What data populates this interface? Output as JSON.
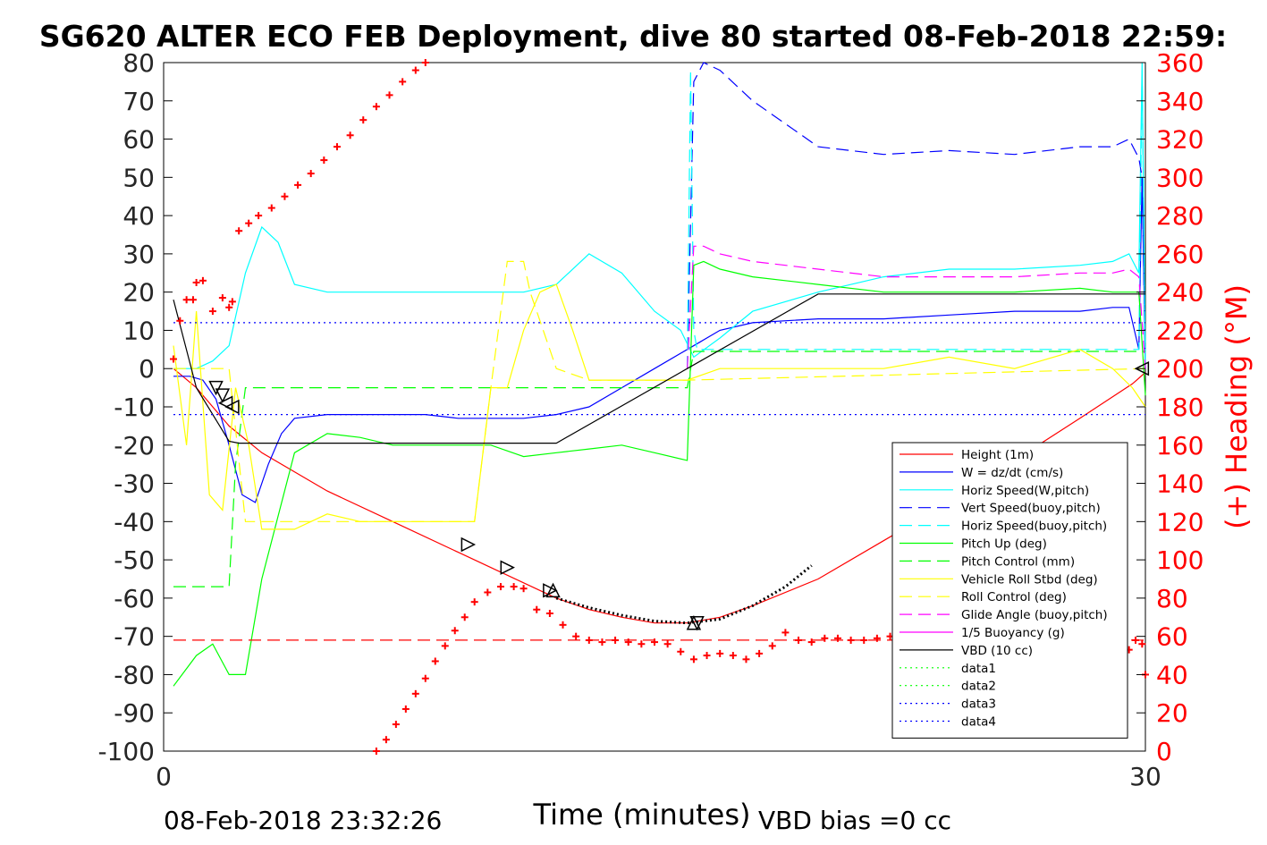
{
  "title": "SG620 ALTER ECO FEB Deployment, dive 80 started 08-Feb-2018 22:59:",
  "footer": {
    "end_time": "08-Feb-2018 23:32:26",
    "vbd_bias": "VBD bias =0 cc"
  },
  "colors": {
    "red": "#ff0000",
    "blue": "#0000ff",
    "cyan": "#00ffff",
    "green": "#00ff00",
    "yellow": "#ffff00",
    "magenta": "#ff00ff",
    "black": "#000000"
  },
  "chart_data": {
    "type": "line",
    "xlabel": "Time (minutes)",
    "ylabel_left": "",
    "ylabel_right": "(+) Heading (°M)",
    "xlim": [
      0,
      30
    ],
    "ylim_left": [
      -100,
      80
    ],
    "ylim_right": [
      0,
      360
    ],
    "x_ticks": [
      "0",
      "30"
    ],
    "y_ticks_left": [
      "80",
      "70",
      "60",
      "50",
      "40",
      "30",
      "20",
      "10",
      "0",
      "-10",
      "-20",
      "-30",
      "-40",
      "-50",
      "-60",
      "-70",
      "-80",
      "-90",
      "-100"
    ],
    "y_ticks_right": [
      "360",
      "340",
      "320",
      "300",
      "280",
      "260",
      "240",
      "220",
      "200",
      "180",
      "160",
      "140",
      "120",
      "100",
      "80",
      "60",
      "40",
      "20",
      "0"
    ],
    "grid": false,
    "legend_position": "lower-right",
    "series": [
      {
        "name": "Height (1m)",
        "color": "#ff0000",
        "dash": "solid",
        "x": [
          0.3,
          1.0,
          1.5,
          2.0,
          3.0,
          5.0,
          7.0,
          9.0,
          10.0,
          11.0,
          12.0,
          13.0,
          14.0,
          15.0,
          16.0,
          17.0,
          18.0,
          20.0,
          22.0,
          24.0,
          26.0,
          28.0,
          29.6,
          30.0
        ],
        "y": [
          0,
          -5,
          -10,
          -15,
          -22,
          -32,
          -40,
          -48,
          -52,
          -56,
          -60,
          -63,
          -65,
          -66.5,
          -66.5,
          -65,
          -62,
          -55,
          -45,
          -35,
          -24,
          -13,
          -4,
          -1
        ]
      },
      {
        "name": "W = dz/dt (cm/s)",
        "color": "#0000ff",
        "dash": "solid",
        "x": [
          0.3,
          0.8,
          1.2,
          1.6,
          2.0,
          2.4,
          2.8,
          3.2,
          3.6,
          4.0,
          5,
          6,
          7,
          8,
          9,
          10,
          11,
          12,
          13,
          14,
          15,
          16,
          16.4,
          17,
          18,
          20,
          22,
          24,
          26,
          28,
          29,
          29.5,
          29.8,
          29.9,
          30.0
        ],
        "y": [
          -2,
          -2,
          -3,
          -8,
          -20,
          -33,
          -35,
          -25,
          -17,
          -13,
          -12,
          -12,
          -12,
          -12,
          -13,
          -13,
          -13,
          -12,
          -10,
          -5,
          0,
          5,
          7,
          10,
          12,
          13,
          13,
          14,
          15,
          15,
          16,
          16,
          5,
          50,
          0
        ]
      },
      {
        "name": "Horiz Speed(W,pitch)",
        "color": "#00ffff",
        "dash": "solid",
        "x": [
          0.3,
          1.0,
          1.5,
          2.0,
          2.5,
          3.0,
          3.5,
          4.0,
          5,
          6,
          7,
          8,
          9,
          10,
          11,
          12,
          13,
          14,
          15,
          15.8,
          16.2,
          17,
          18,
          20,
          22,
          24,
          26,
          28,
          29,
          29.5,
          29.8,
          29.9,
          30.0
        ],
        "y": [
          0,
          0,
          2,
          6,
          25,
          37,
          33,
          22,
          20,
          20,
          20,
          20,
          20,
          20,
          20,
          22,
          30,
          25,
          15,
          10,
          3,
          8,
          15,
          20,
          24,
          26,
          26,
          27,
          28,
          30,
          25,
          80,
          0
        ]
      },
      {
        "name": "Vert Speed(buoy,pitch)",
        "color": "#0000ff",
        "dash": "dash",
        "x": [
          16.0,
          16.2,
          16.5,
          17,
          18,
          20,
          22,
          24,
          26,
          28,
          29,
          29.5,
          29.8,
          29.9,
          30.0
        ],
        "y": [
          0,
          75,
          80,
          78,
          70,
          58,
          56,
          57,
          56,
          58,
          58,
          60,
          55,
          50,
          0
        ]
      },
      {
        "name": "Horiz Speed(buoy,pitch)",
        "color": "#00ffff",
        "dash": "dash",
        "x": [
          16.0,
          16.1,
          16.2,
          16.3,
          29.8,
          29.9,
          30.0
        ],
        "y": [
          0,
          78,
          10,
          5,
          5,
          78,
          0
        ]
      },
      {
        "name": "Pitch Up (deg)",
        "color": "#00ff00",
        "dash": "solid",
        "x": [
          0.3,
          1.0,
          1.5,
          2.0,
          2.5,
          3.0,
          4,
          5,
          6,
          7,
          8,
          9,
          10,
          11,
          12,
          13,
          14,
          15,
          16,
          16.2,
          16.5,
          17,
          18,
          20,
          22,
          24,
          26,
          28,
          29,
          29.5,
          29.8,
          30.0
        ],
        "y": [
          -83,
          -75,
          -72,
          -80,
          -80,
          -55,
          -22,
          -17,
          -18,
          -20,
          -20,
          -20,
          -20,
          -23,
          -22,
          -21,
          -20,
          -22,
          -24,
          27,
          28,
          26,
          24,
          22,
          20,
          20,
          20,
          21,
          20,
          20,
          20,
          -7
        ]
      },
      {
        "name": "Pitch Control (mm)",
        "color": "#00ff00",
        "dash": "dash",
        "x": [
          0.3,
          2.0,
          2.2,
          2.5,
          16.0,
          16.2,
          30.0
        ],
        "y": [
          -57,
          -57,
          -25,
          -5,
          -5,
          4.5,
          4.5
        ]
      },
      {
        "name": "Vehicle Roll Stbd (deg)",
        "color": "#ffff00",
        "dash": "solid",
        "x": [
          0.3,
          0.7,
          1.0,
          1.4,
          1.8,
          2.2,
          2.6,
          3,
          4,
          5,
          6,
          7,
          8,
          9,
          9.5,
          10,
          10.5,
          11,
          11.5,
          12,
          12.5,
          13,
          14,
          15,
          16,
          17,
          18,
          20,
          22,
          24,
          26,
          28,
          29,
          29.6,
          30.0
        ],
        "y": [
          6,
          -20,
          15,
          -33,
          -37,
          -5,
          -20,
          -42,
          -42,
          -38,
          -40,
          -40,
          -40,
          -40,
          -40,
          -5,
          -5,
          10,
          20,
          22,
          10,
          -3,
          -3,
          -3,
          -3,
          0,
          0,
          0,
          0,
          3,
          0,
          5,
          0,
          -5,
          -10
        ]
      },
      {
        "name": "Roll Control (deg)",
        "color": "#ffff00",
        "dash": "dash",
        "x": [
          0.3,
          2.0,
          2.5,
          9.0,
          9.5,
          10.0,
          10.5,
          10.8,
          11.0,
          11.2,
          12.0,
          13.0,
          16.0,
          30.0
        ],
        "y": [
          0,
          0,
          -40,
          -40,
          -40,
          -5,
          28,
          28,
          28,
          20,
          0,
          -3,
          -3,
          0
        ]
      },
      {
        "name": "Glide Angle (buoy,pitch)",
        "color": "#ff00ff",
        "dash": "dash",
        "x": [
          16.0,
          16.2,
          16.5,
          17,
          18,
          20,
          22,
          24,
          26,
          28,
          29,
          29.5,
          29.8,
          30.0
        ],
        "y": [
          0,
          32,
          32,
          30,
          28,
          26,
          24,
          24,
          24,
          25,
          25,
          26,
          24,
          0
        ]
      },
      {
        "name": "1/5 Buoyancy (g)",
        "color": "#ff00ff",
        "dash": "solid",
        "x": [],
        "y": []
      },
      {
        "name": "VBD (10 cc)",
        "color": "#000000",
        "dash": "solid",
        "x": [
          0.3,
          1.0,
          2.0,
          2.3,
          9.0,
          12.0,
          16.0,
          20.0,
          30.0
        ],
        "y": [
          18,
          -5,
          -19,
          -19.5,
          -19.5,
          -19.5,
          0,
          19.5,
          19.5
        ]
      },
      {
        "name": "data1",
        "color": "#00ff00",
        "dash": "dot",
        "x": [],
        "y": []
      },
      {
        "name": "data2",
        "color": "#00ff00",
        "dash": "dot",
        "x": [],
        "y": []
      },
      {
        "name": "data3",
        "color": "#0000ff",
        "dash": "dot",
        "x": [
          0.3,
          30.0
        ],
        "y": [
          12,
          12
        ]
      },
      {
        "name": "data4",
        "color": "#0000ff",
        "dash": "dot",
        "x": [
          0.3,
          30.0
        ],
        "y": [
          -12,
          -12
        ]
      },
      {
        "name": "",
        "color": "#ff0000",
        "dash": "dash",
        "x": [
          0.3,
          30.0
        ],
        "y": [
          -71,
          -71
        ]
      }
    ],
    "heading_markers": {
      "color": "#ff0000",
      "points": [
        [
          0.3,
          205
        ],
        [
          0.5,
          225
        ],
        [
          0.7,
          236
        ],
        [
          0.9,
          236
        ],
        [
          1.0,
          245
        ],
        [
          1.2,
          246
        ],
        [
          1.5,
          230
        ],
        [
          1.8,
          237
        ],
        [
          2.0,
          232
        ],
        [
          2.1,
          235
        ],
        [
          2.3,
          272
        ],
        [
          2.6,
          276
        ],
        [
          2.9,
          280
        ],
        [
          3.3,
          284
        ],
        [
          3.7,
          290
        ],
        [
          4.1,
          296
        ],
        [
          4.5,
          302
        ],
        [
          4.9,
          309
        ],
        [
          5.3,
          316
        ],
        [
          5.7,
          322
        ],
        [
          6.1,
          330
        ],
        [
          6.5,
          337
        ],
        [
          6.9,
          343
        ],
        [
          7.3,
          350
        ],
        [
          7.7,
          356
        ],
        [
          8.0,
          360
        ],
        [
          6.5,
          0
        ],
        [
          6.8,
          6
        ],
        [
          7.1,
          14
        ],
        [
          7.4,
          22
        ],
        [
          7.7,
          30
        ],
        [
          8.0,
          38
        ],
        [
          8.3,
          47
        ],
        [
          8.6,
          55
        ],
        [
          8.9,
          63
        ],
        [
          9.2,
          70
        ],
        [
          9.5,
          78
        ],
        [
          9.9,
          83
        ],
        [
          10.3,
          86
        ],
        [
          10.7,
          86
        ],
        [
          11.0,
          85
        ],
        [
          11.4,
          74
        ],
        [
          11.8,
          72
        ],
        [
          12.2,
          66
        ],
        [
          12.6,
          60
        ],
        [
          13.0,
          58
        ],
        [
          13.4,
          57
        ],
        [
          13.8,
          58
        ],
        [
          14.2,
          57
        ],
        [
          14.6,
          56
        ],
        [
          15.0,
          57
        ],
        [
          15.4,
          56
        ],
        [
          15.8,
          52
        ],
        [
          16.2,
          48
        ],
        [
          16.6,
          50
        ],
        [
          17.0,
          51
        ],
        [
          17.4,
          50
        ],
        [
          17.8,
          48
        ],
        [
          18.2,
          51
        ],
        [
          18.6,
          55
        ],
        [
          19.0,
          62
        ],
        [
          19.4,
          58
        ],
        [
          19.8,
          57
        ],
        [
          20.2,
          59
        ],
        [
          20.6,
          59
        ],
        [
          21.0,
          58
        ],
        [
          21.4,
          58
        ],
        [
          21.8,
          59
        ],
        [
          22.2,
          60
        ],
        [
          22.6,
          59
        ],
        [
          23.0,
          61
        ],
        [
          23.4,
          60
        ],
        [
          23.8,
          62
        ],
        [
          24.2,
          64
        ],
        [
          24.6,
          63
        ],
        [
          25.0,
          64
        ],
        [
          25.4,
          65
        ],
        [
          25.8,
          63
        ],
        [
          26.2,
          60
        ],
        [
          26.6,
          57
        ],
        [
          27.0,
          56
        ],
        [
          27.4,
          55
        ],
        [
          27.8,
          53
        ],
        [
          28.2,
          52
        ],
        [
          28.6,
          52
        ],
        [
          29.0,
          51
        ],
        [
          29.3,
          50
        ],
        [
          29.5,
          53
        ],
        [
          29.7,
          58
        ],
        [
          29.9,
          56
        ],
        [
          30.0,
          40
        ]
      ]
    },
    "triangle_markers": {
      "color": "#000000",
      "points": [
        [
          1.6,
          -5,
          "down"
        ],
        [
          1.8,
          -7,
          "down"
        ],
        [
          1.9,
          -9,
          "left"
        ],
        [
          2.1,
          -10,
          "left"
        ],
        [
          9.3,
          -46,
          "right"
        ],
        [
          10.5,
          -52,
          "right"
        ],
        [
          11.8,
          -58,
          "right"
        ],
        [
          11.9,
          -58,
          "up"
        ],
        [
          16.2,
          -66.5,
          "up"
        ],
        [
          16.3,
          -66.5,
          "down"
        ],
        [
          29.9,
          0,
          "left"
        ]
      ]
    },
    "dotted_black_segment": {
      "x": [
        12.0,
        13.0,
        14.0,
        15.0,
        16.0,
        17.0,
        18.0,
        19.0,
        19.8
      ],
      "y": [
        -60,
        -62.5,
        -64.5,
        -66,
        -66.5,
        -65.5,
        -62,
        -57,
        -51.5
      ]
    }
  }
}
